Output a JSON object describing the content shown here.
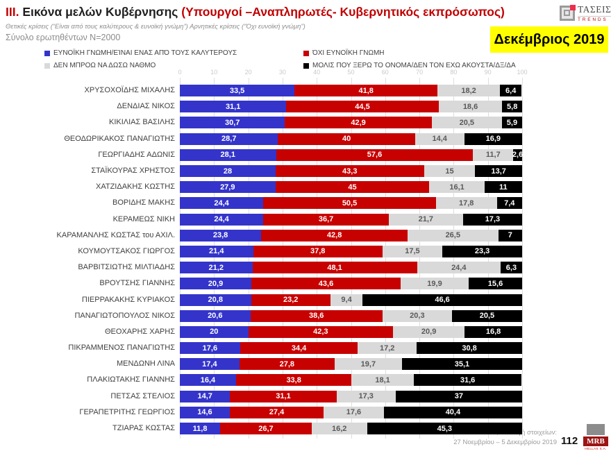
{
  "header": {
    "title_prefix": "III.",
    "title_main": "Εικόνα μελών Κυβέρνησης",
    "title_paren": "(Υπουργοί –Αναπληρωτές- Κυβερνητικός εκπρόσωπος)",
    "subtitle": "Θετικές κρίσεις (“Είναι από τους καλύτερους & ευνοϊκή γνώμη”)  Αρνητικές κρίσεις (“Όχι ευνοϊκή γνώμη”)",
    "sample_note": "Σύνολο ερωτηθέντων N=2000",
    "date_badge": "Δεκέμβριος 2019",
    "badge_bg": "#FFFF00",
    "brand": {
      "name": "ΤΑΣΕΙΣ",
      "sub": "TRENDS"
    }
  },
  "legend": [
    {
      "label": "ΕΥΝΟΪΚΗ ΓΝΩΜΗ/ΕΊΝΑΙ ΕΝΑΣ ΑΠΌ ΤΟΥΣ ΚΑΛΥΤΕΡΟΥΣ",
      "color": "#3434CB"
    },
    {
      "label": "ΌΧΙ ΕΥΝΟΪΚΗ ΓΝΩΜΗ",
      "color": "#C70000"
    },
    {
      "label": "ΔΕΝ ΜΠΡΟΩ ΝΑ ΔΩΣΩ ΝΑΘΜΟ",
      "color": "#D9D9D9"
    },
    {
      "label": "ΜΟΛΙΣ ΠΟΥ ΞΕΡΩ ΤΟ ΟΝΟΜΑ/ΔΕΝ ΤΟΝ ΕΧΩ ΑΚΟΥΣΤΑ/ΔΞ/ΔΑ",
      "color": "#000000"
    }
  ],
  "chart_data": {
    "type": "bar",
    "orientation": "horizontal-stacked",
    "title": "Εικόνα μελών Κυβέρνησης — Δεκέμβριος 2019",
    "xlim": [
      0,
      100
    ],
    "x_ticks": [
      0,
      10,
      20,
      30,
      40,
      50,
      60,
      70,
      80,
      90,
      100
    ],
    "grid": true,
    "legend_position": "top",
    "value_label_decimal": "comma",
    "categories": [
      "ΧΡΥΣΟΧΟΪΔΗΣ ΜΙΧΑΛΗΣ",
      "ΔΕΝΔΙΑΣ ΝΙΚΟΣ",
      "ΚΙΚΙΛΙΑΣ ΒΑΣΙΛΗΣ",
      "ΘΕΟΔΩΡΙΚΑΚΟΣ ΠΑΝΑΓΙΩΤΗΣ",
      "ΓΕΩΡΓΙΑΔΗΣ ΑΔΩΝΙΣ",
      "ΣΤΑΪΚΟΥΡΑΣ ΧΡΗΣΤΟΣ",
      "ΧΑΤΖΙΔΑΚΗΣ ΚΩΣΤΗΣ",
      "ΒΟΡΙΔΗΣ ΜΑΚΗΣ",
      "ΚΕΡΑΜΕΩΣ ΝΙΚΗ",
      "ΚΑΡΑΜΑΝΛΗΣ ΚΩΣΤΑΣ του ΑΧΙΛ.",
      "ΚΟΥΜΟΥΤΣΑΚΟΣ ΓΙΩΡΓΟΣ",
      "ΒΑΡΒΙΤΣΙΩΤΗΣ ΜΙΛΤΙΑΔΗΣ",
      "ΒΡΟΥΤΣΗΣ ΓΙΑΝΝΗΣ",
      "ΠΙΕΡΡΑΚΑΚΗΣ ΚΥΡΙΑΚΟΣ",
      "ΠΑΝΑΓΙΩΤΟΠΟΥΛΟΣ ΝΙΚΟΣ",
      "ΘΕΟΧΑΡΗΣ ΧΑΡΗΣ",
      "ΠΙΚΡΑΜΜΕΝΟΣ ΠΑΝΑΓΙΩΤΗΣ",
      "ΜΕΝΔΩΝΗ ΛΙΝΑ",
      "ΠΛΑΚΙΩΤΑΚΗΣ ΓΙΑΝΝΗΣ",
      "ΠΕΤΣΑΣ ΣΤΕΛΙΟΣ",
      "ΓΕΡΑΠΕΤΡΙΤΗΣ ΓΕΩΡΓΙΟΣ",
      "ΤΖΙΑΡΑΣ ΚΩΣΤΑΣ"
    ],
    "series": [
      {
        "key": "favorable",
        "name": "ΕΥΝΟΪΚΗ ΓΝΩΜΗ/ΕΊΝΑΙ ΕΝΑΣ ΑΠΌ ΤΟΥΣ ΚΑΛΥΤΕΡΟΥΣ",
        "color": "#3434CB",
        "values": [
          33.5,
          31.1,
          30.7,
          28.7,
          28.1,
          28,
          27.9,
          24.4,
          24.4,
          23.8,
          21.4,
          21.2,
          20.9,
          20.8,
          20.6,
          20,
          17.6,
          17.4,
          16.4,
          14.7,
          14.6,
          11.8
        ]
      },
      {
        "key": "unfavorable",
        "name": "ΌΧΙ ΕΥΝΟΪΚΗ ΓΝΩΜΗ",
        "color": "#C70000",
        "values": [
          41.8,
          44.5,
          42.9,
          40,
          57.6,
          43.3,
          45,
          50.5,
          36.7,
          42.8,
          37.8,
          48.1,
          43.6,
          23.2,
          38.6,
          42.3,
          34.4,
          27.8,
          33.8,
          31.1,
          27.4,
          26.7
        ]
      },
      {
        "key": "cannot-rate",
        "name": "ΔΕΝ ΜΠΡΟΩ ΝΑ ΔΩΣΩ ΝΑΘΜΟ",
        "color": "#D9D9D9",
        "values": [
          18.2,
          18.6,
          20.5,
          14.4,
          11.7,
          15,
          16.1,
          17.8,
          21.7,
          26.5,
          17.5,
          24.4,
          19.9,
          9.4,
          20.3,
          20.9,
          17.2,
          19.7,
          18.1,
          17.3,
          17.6,
          16.2
        ]
      },
      {
        "key": "barely-know",
        "name": "ΜΟΛΙΣ ΠΟΥ ΞΕΡΩ ΤΟ ΟΝΟΜΑ/ΔΕΝ ΤΟΝ ΕΧΩ ΑΚΟΥΣΤΑ/ΔΞ/ΔΑ",
        "color": "#000000",
        "values": [
          6.4,
          5.8,
          5.9,
          16.9,
          2.6,
          13.7,
          11,
          7.4,
          17.3,
          7,
          23.3,
          6.3,
          15.6,
          46.6,
          20.5,
          16.8,
          30.8,
          35.1,
          31.6,
          37,
          40.4,
          45.3
        ]
      }
    ]
  },
  "footer": {
    "source_line1": "MRB, Συλλογή στοιχείων:",
    "source_line2": "27 Νοεμβρίου – 5 Δεκεμβρίου 2019",
    "page_number": "112",
    "brand": {
      "name": "MRB",
      "sub": "HELLAS S.A."
    }
  }
}
